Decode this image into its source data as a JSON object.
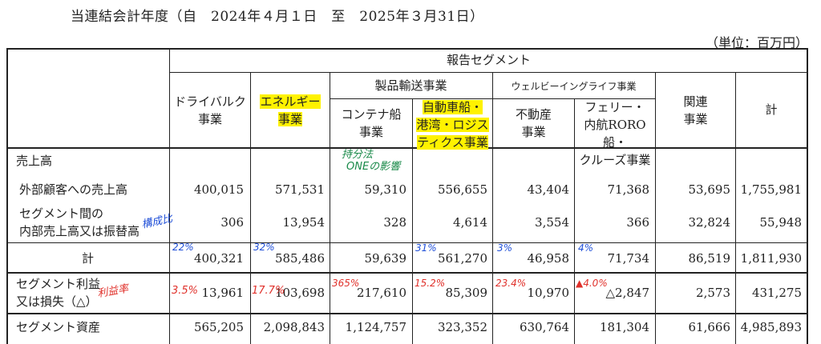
{
  "period": "当連結会計年度（自　2024年４月１日　至　2025年３月31日）",
  "unit": "（単位：百万円）",
  "headers": {
    "report_segment": "報告セグメント",
    "product_transport": "製品輸送事業",
    "wellbeing": "ウェルビーイングライフ事業",
    "dry_bulk": [
      "ドライバルク",
      "事業"
    ],
    "energy": [
      "エネルギー",
      "事業"
    ],
    "container": [
      "コンテナ船",
      "事業"
    ],
    "car_carrier": [
      "自動車船・",
      "港湾・ロジス",
      "ティクス事業"
    ],
    "real_estate": [
      "不動産",
      "事業"
    ],
    "ferry": [
      "フェリー・",
      "内航RORO船・",
      "クルーズ事業"
    ],
    "related": [
      "関連",
      "事業"
    ],
    "total": "計"
  },
  "rows": {
    "sales": "売上高",
    "external_label": "外部顧客への売上高",
    "external_values": [
      "400,015",
      "571,531",
      "59,310",
      "556,655",
      "43,404",
      "71,368",
      "53,695",
      "1,755,981"
    ],
    "inter_label": [
      "セグメント間の",
      "内部売上高又は振替高"
    ],
    "inter_values": [
      "306",
      "13,954",
      "328",
      "4,614",
      "3,554",
      "366",
      "32,824",
      "55,948"
    ],
    "subtotal_label": "計",
    "subtotal_values": [
      "400,321",
      "585,486",
      "59,639",
      "561,270",
      "46,958",
      "71,734",
      "86,519",
      "1,811,930"
    ],
    "profit_label": [
      "セグメント利益",
      "又は損失（△）"
    ],
    "profit_values": [
      "13,961",
      "103,698",
      "217,610",
      "85,309",
      "10,970",
      "△2,847",
      "2,573",
      "431,275"
    ],
    "assets_label": "セグメント資産",
    "assets_values": [
      "565,205",
      "2,098,843",
      "1,124,757",
      "323,352",
      "630,764",
      "181,304",
      "61,666",
      "4,985,893"
    ]
  },
  "annotations": {
    "container_note": [
      "持分法",
      "ONEの影響"
    ],
    "composition": "構成比",
    "share": [
      "22%",
      "32%",
      "31%",
      "3%",
      "4%"
    ],
    "margin": "利益率",
    "margins": [
      "3.5%",
      "17.7%",
      "365%",
      "15.2%",
      "23.4%",
      "▲4.0%"
    ]
  },
  "colors": {
    "highlight": "#fff200",
    "blue_ink": "#1f4fd8",
    "red_ink": "#e0302a",
    "green_ink": "#1a8a4a"
  }
}
